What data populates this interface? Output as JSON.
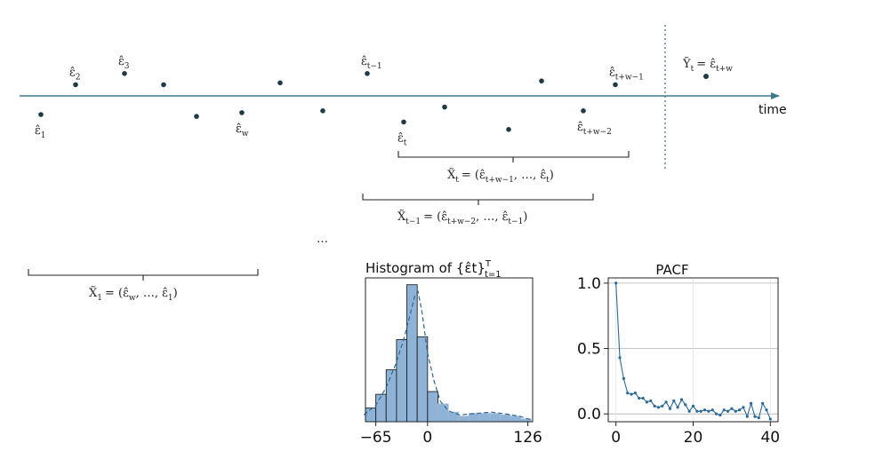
{
  "timeline": {
    "axis_label": "time",
    "points": [
      {
        "label": "ε̂",
        "sub": "1",
        "t": 1,
        "v": -1
      },
      {
        "label": "ε̂",
        "sub": "2",
        "t": 2,
        "v": 0.6
      },
      {
        "label": "ε̂",
        "sub": "3",
        "t": 3,
        "v": 1.2
      },
      {
        "label": "",
        "sub": "",
        "t": 4,
        "v": 0.6
      },
      {
        "label": "",
        "sub": "",
        "t": 5,
        "v": -1.1
      },
      {
        "label": "ε̂",
        "sub": "w",
        "t": 6,
        "v": -0.9
      },
      {
        "label": "",
        "sub": "",
        "t": 7,
        "v": 0.7
      },
      {
        "label": "",
        "sub": "",
        "t": 8,
        "v": -0.8
      },
      {
        "label": "ε̂",
        "sub": "t−1",
        "t": 9,
        "v": 1.2
      },
      {
        "label": "ε̂",
        "sub": "t",
        "t": 10,
        "v": -1.4
      },
      {
        "label": "",
        "sub": "",
        "t": 11,
        "v": -0.6
      },
      {
        "label": "",
        "sub": "",
        "t": 12,
        "v": -1.8
      },
      {
        "label": "",
        "sub": "",
        "t": 13,
        "v": 0.8
      },
      {
        "label": "ε̂",
        "sub": "t+w−2",
        "t": 14,
        "v": -0.8
      },
      {
        "label": "ε̂",
        "sub": "t+w−1",
        "t": 15,
        "v": 0.6
      }
    ],
    "target": {
      "lhs": "Ỹ",
      "lhs_sub": "t",
      "rhs": "= ε̂",
      "rhs_sub": "t+w"
    }
  },
  "braces": [
    {
      "name": "brace-xt",
      "lhs": "X̃",
      "lhs_sub": "t",
      "rhs": "= (ε̂",
      "rhs_sub1": "t+w−1",
      "mid": ", …, ε̂",
      "rhs_sub2": "t",
      "close": ")"
    },
    {
      "name": "brace-xt-minus-1",
      "lhs": "X̃",
      "lhs_sub": "t−1",
      "rhs": "= (ε̂",
      "rhs_sub1": "t+w−2",
      "mid": ", …, ε̂",
      "rhs_sub2": "t−1",
      "close": ")"
    },
    {
      "name": "brace-x1",
      "lhs": "X̃",
      "lhs_sub": "1",
      "rhs": "= (ε̂",
      "rhs_sub1": "w",
      "mid": ", …, ε̂",
      "rhs_sub2": "1",
      "close": ")"
    }
  ],
  "ellipsis": "…",
  "chart_data": [
    {
      "type": "bar",
      "title": "Histogram of {ε̂t}",
      "title_sup": "T",
      "title_sub": "t=1",
      "x_tick_labels": [
        "−65",
        "0",
        "126"
      ],
      "x_ticks": [
        -65,
        0,
        126
      ],
      "xlim": [
        -78,
        132
      ],
      "bins": [
        {
          "x0": -78,
          "x1": -65,
          "count": 0.1
        },
        {
          "x0": -65,
          "x1": -52,
          "count": 0.2
        },
        {
          "x0": -52,
          "x1": -39,
          "count": 0.38
        },
        {
          "x0": -39,
          "x1": -26,
          "count": 0.6
        },
        {
          "x0": -26,
          "x1": -13,
          "count": 1.0
        },
        {
          "x0": -13,
          "x1": 0,
          "count": 0.62
        },
        {
          "x0": 0,
          "x1": 13,
          "count": 0.22
        },
        {
          "x0": 13,
          "x1": 26,
          "count": 0.13
        },
        {
          "x0": 26,
          "x1": 39,
          "count": 0.07
        },
        {
          "x0": 39,
          "x1": 52,
          "count": 0.04
        },
        {
          "x0": 52,
          "x1": 65,
          "count": 0.06
        },
        {
          "x0": 65,
          "x1": 78,
          "count": 0.06
        },
        {
          "x0": 78,
          "x1": 91,
          "count": 0.06
        },
        {
          "x0": 91,
          "x1": 104,
          "count": 0.05
        },
        {
          "x0": 104,
          "x1": 117,
          "count": 0.04
        },
        {
          "x0": 117,
          "x1": 130,
          "count": 0.02
        }
      ],
      "kde": [
        [
          -80,
          0.05
        ],
        [
          -65,
          0.12
        ],
        [
          -52,
          0.25
        ],
        [
          -40,
          0.42
        ],
        [
          -30,
          0.6
        ],
        [
          -22,
          0.78
        ],
        [
          -16,
          0.92
        ],
        [
          -12,
          0.95
        ],
        [
          -7,
          0.8
        ],
        [
          0,
          0.5
        ],
        [
          8,
          0.3
        ],
        [
          16,
          0.15
        ],
        [
          26,
          0.08
        ],
        [
          40,
          0.05
        ],
        [
          60,
          0.06
        ],
        [
          80,
          0.07
        ],
        [
          100,
          0.055
        ],
        [
          115,
          0.04
        ],
        [
          130,
          0.015
        ]
      ],
      "ylim": [
        0,
        1.05
      ],
      "colors": {
        "bar": "#8fb3d6",
        "edge": "#222222",
        "kde": "#2b6a97"
      }
    },
    {
      "type": "line",
      "title": "PACF",
      "x": [
        0,
        1,
        2,
        3,
        4,
        5,
        6,
        7,
        8,
        9,
        10,
        11,
        12,
        13,
        14,
        15,
        16,
        17,
        18,
        19,
        20,
        21,
        22,
        23,
        24,
        25,
        26,
        27,
        28,
        29,
        30,
        31,
        32,
        33,
        34,
        35,
        36,
        37,
        38,
        39,
        40
      ],
      "values": [
        1.0,
        0.43,
        0.27,
        0.16,
        0.15,
        0.16,
        0.12,
        0.12,
        0.09,
        0.1,
        0.06,
        0.05,
        0.06,
        0.09,
        0.04,
        0.1,
        0.05,
        0.11,
        0.07,
        0.02,
        0.06,
        0.02,
        0.02,
        0.03,
        0.02,
        0.03,
        0.0,
        -0.01,
        0.03,
        0.02,
        0.04,
        0.02,
        0.03,
        0.05,
        -0.02,
        0.08,
        -0.02,
        -0.03,
        0.08,
        0.03,
        -0.04
      ],
      "x_ticks": [
        0,
        20,
        40
      ],
      "y_ticks": [
        0.0,
        0.5,
        1.0
      ],
      "x_tick_labels": [
        "0",
        "20",
        "40"
      ],
      "y_tick_labels": [
        "0.0",
        "0.5",
        "1.0"
      ],
      "xlim": [
        -2,
        42
      ],
      "ylim": [
        -0.06,
        1.04
      ],
      "grid": true,
      "colors": {
        "line": "#2b6a97"
      }
    }
  ]
}
